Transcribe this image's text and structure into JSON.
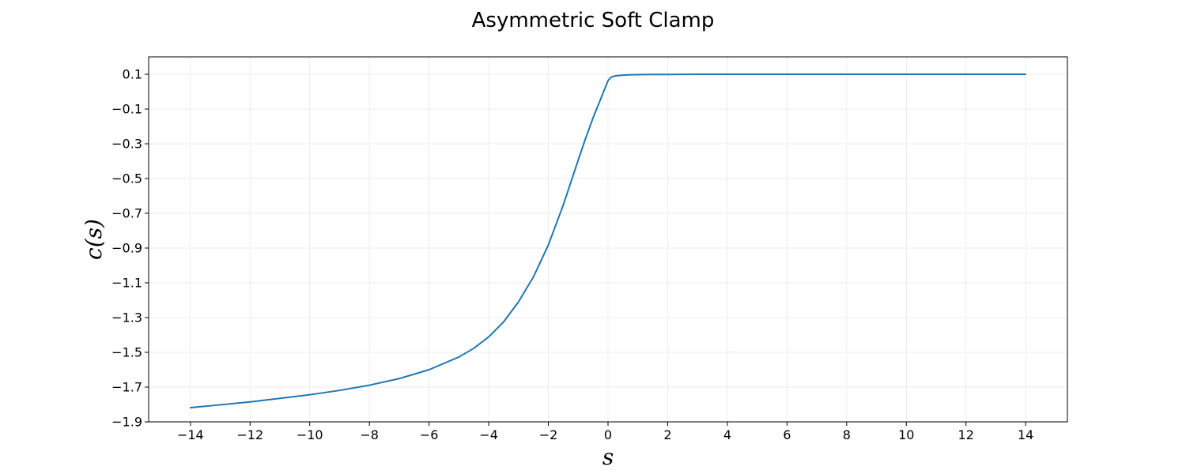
{
  "chart_data": {
    "type": "line",
    "title": "Asymmetric Soft Clamp",
    "xlabel": "s",
    "ylabel": "c(s)",
    "xlim": [
      -15.4,
      15.4
    ],
    "ylim": [
      -1.9,
      0.2
    ],
    "xticks": [
      -14,
      -12,
      -10,
      -8,
      -6,
      -4,
      -2,
      0,
      2,
      4,
      6,
      8,
      10,
      12,
      14
    ],
    "yticks": [
      -1.9,
      -1.7,
      -1.5,
      -1.3,
      -1.1,
      -0.9,
      -0.7,
      -0.5,
      -0.3,
      -0.1,
      0.1
    ],
    "grid": true,
    "line_color": "#1f77b4",
    "series": [
      {
        "x": [
          -14,
          -13,
          -12,
          -11,
          -10,
          -9,
          -8,
          -7,
          -6,
          -5,
          -4.5,
          -4,
          -3.5,
          -3,
          -2.5,
          -2,
          -1.5,
          -1,
          -0.75,
          -0.5,
          -0.25,
          0,
          0.1,
          0.25,
          0.5,
          0.75,
          1,
          1.5,
          2,
          3,
          4,
          6,
          8,
          10,
          12,
          14
        ],
        "y": [
          -1.818,
          -1.802,
          -1.785,
          -1.765,
          -1.744,
          -1.719,
          -1.689,
          -1.651,
          -1.6,
          -1.527,
          -1.477,
          -1.411,
          -1.325,
          -1.209,
          -1.066,
          -0.882,
          -0.652,
          -0.394,
          -0.268,
          -0.15,
          -0.044,
          0.063,
          0.083,
          0.091,
          0.095,
          0.097,
          0.098,
          0.099,
          0.099,
          0.1,
          0.1,
          0.1,
          0.1,
          0.1,
          0.1,
          0.1
        ]
      }
    ]
  }
}
